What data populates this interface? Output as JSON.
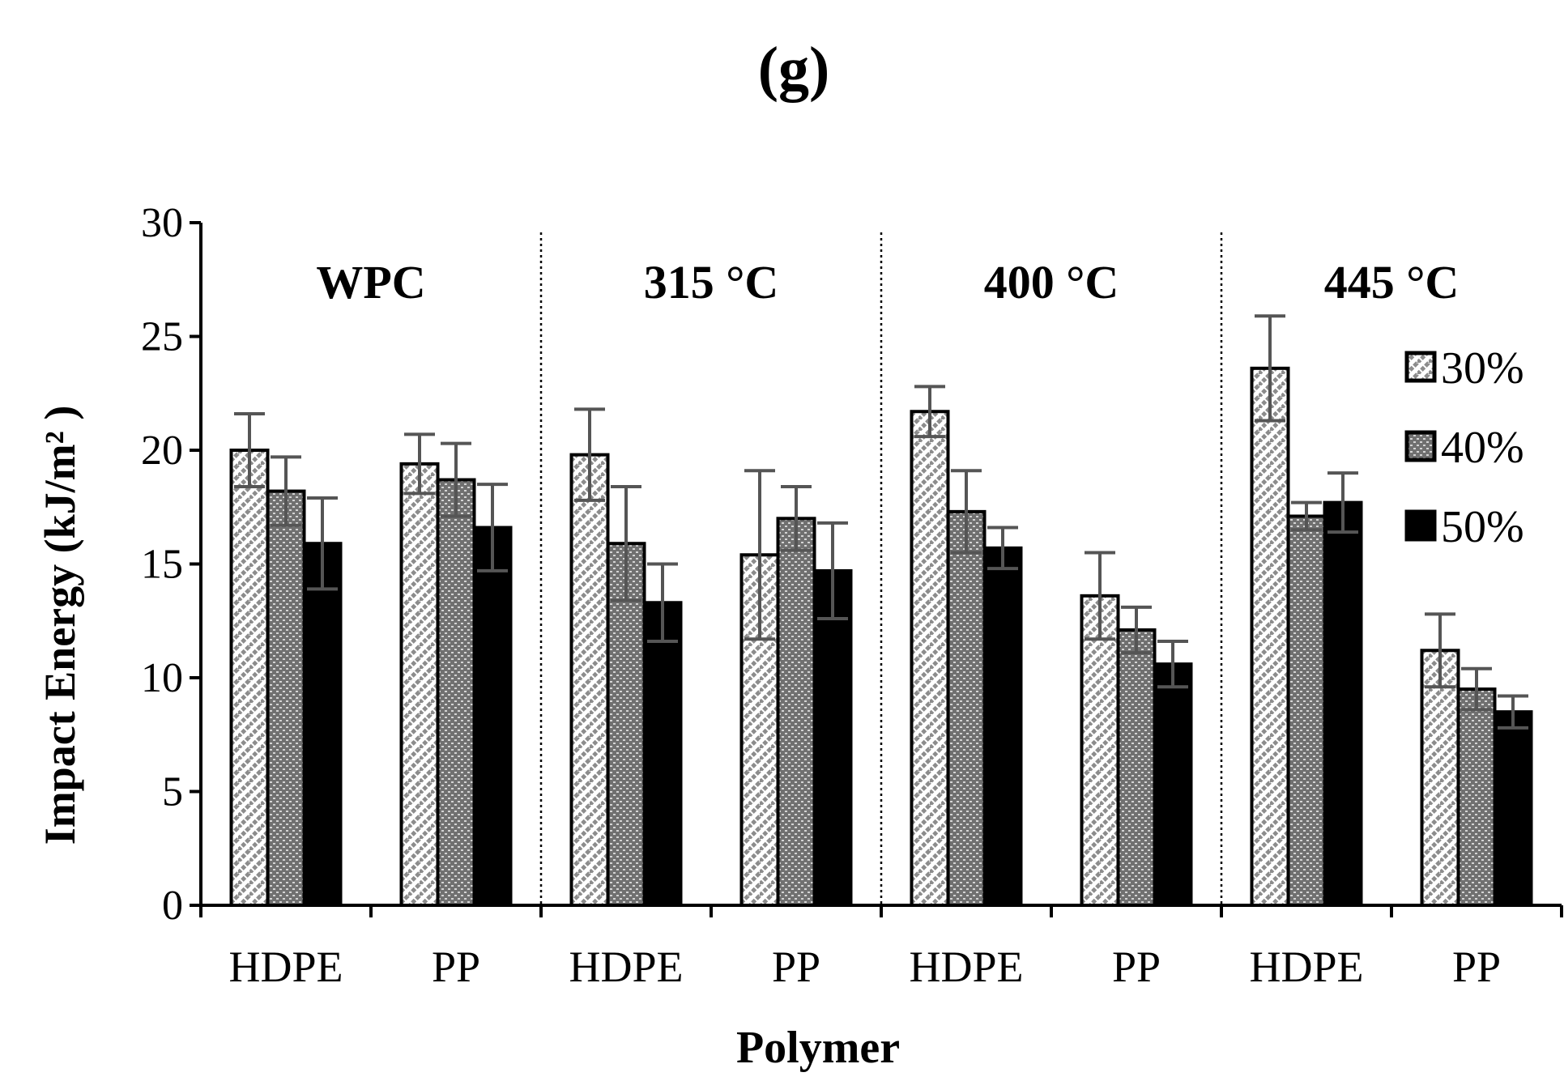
{
  "chart_data": {
    "type": "bar",
    "panel_label": "(g)",
    "title": "(g)",
    "xlabel": "Polymer",
    "ylabel": "Impact Energy (kJ/m² )",
    "ylim": [
      0,
      30
    ],
    "yticks": [
      0,
      5,
      10,
      15,
      20,
      25,
      30
    ],
    "grid": false,
    "legend_position": "right",
    "groups": [
      "WPC",
      "315 °C",
      "400 °C",
      "445 °C"
    ],
    "categories": [
      "HDPE",
      "PP",
      "HDPE",
      "PP",
      "HDPE",
      "PP",
      "HDPE",
      "PP"
    ],
    "series": [
      {
        "name": "30%",
        "pattern": "diagonal-dashed",
        "values": [
          20.0,
          19.4,
          19.8,
          15.4,
          21.7,
          13.6,
          23.6,
          11.2
        ],
        "errors": [
          1.6,
          1.3,
          2.0,
          3.7,
          1.1,
          1.9,
          2.3,
          1.6
        ]
      },
      {
        "name": "40%",
        "pattern": "checker",
        "values": [
          18.2,
          18.7,
          15.9,
          17.0,
          17.3,
          12.1,
          17.1,
          9.5
        ],
        "errors": [
          1.5,
          1.6,
          2.5,
          1.4,
          1.8,
          1.0,
          0.6,
          0.9
        ]
      },
      {
        "name": "50%",
        "pattern": "solid",
        "values": [
          15.9,
          16.6,
          13.3,
          14.7,
          15.7,
          10.6,
          17.7,
          8.5
        ],
        "errors": [
          2.0,
          1.9,
          1.7,
          2.1,
          0.9,
          1.0,
          1.3,
          0.7
        ]
      }
    ]
  }
}
